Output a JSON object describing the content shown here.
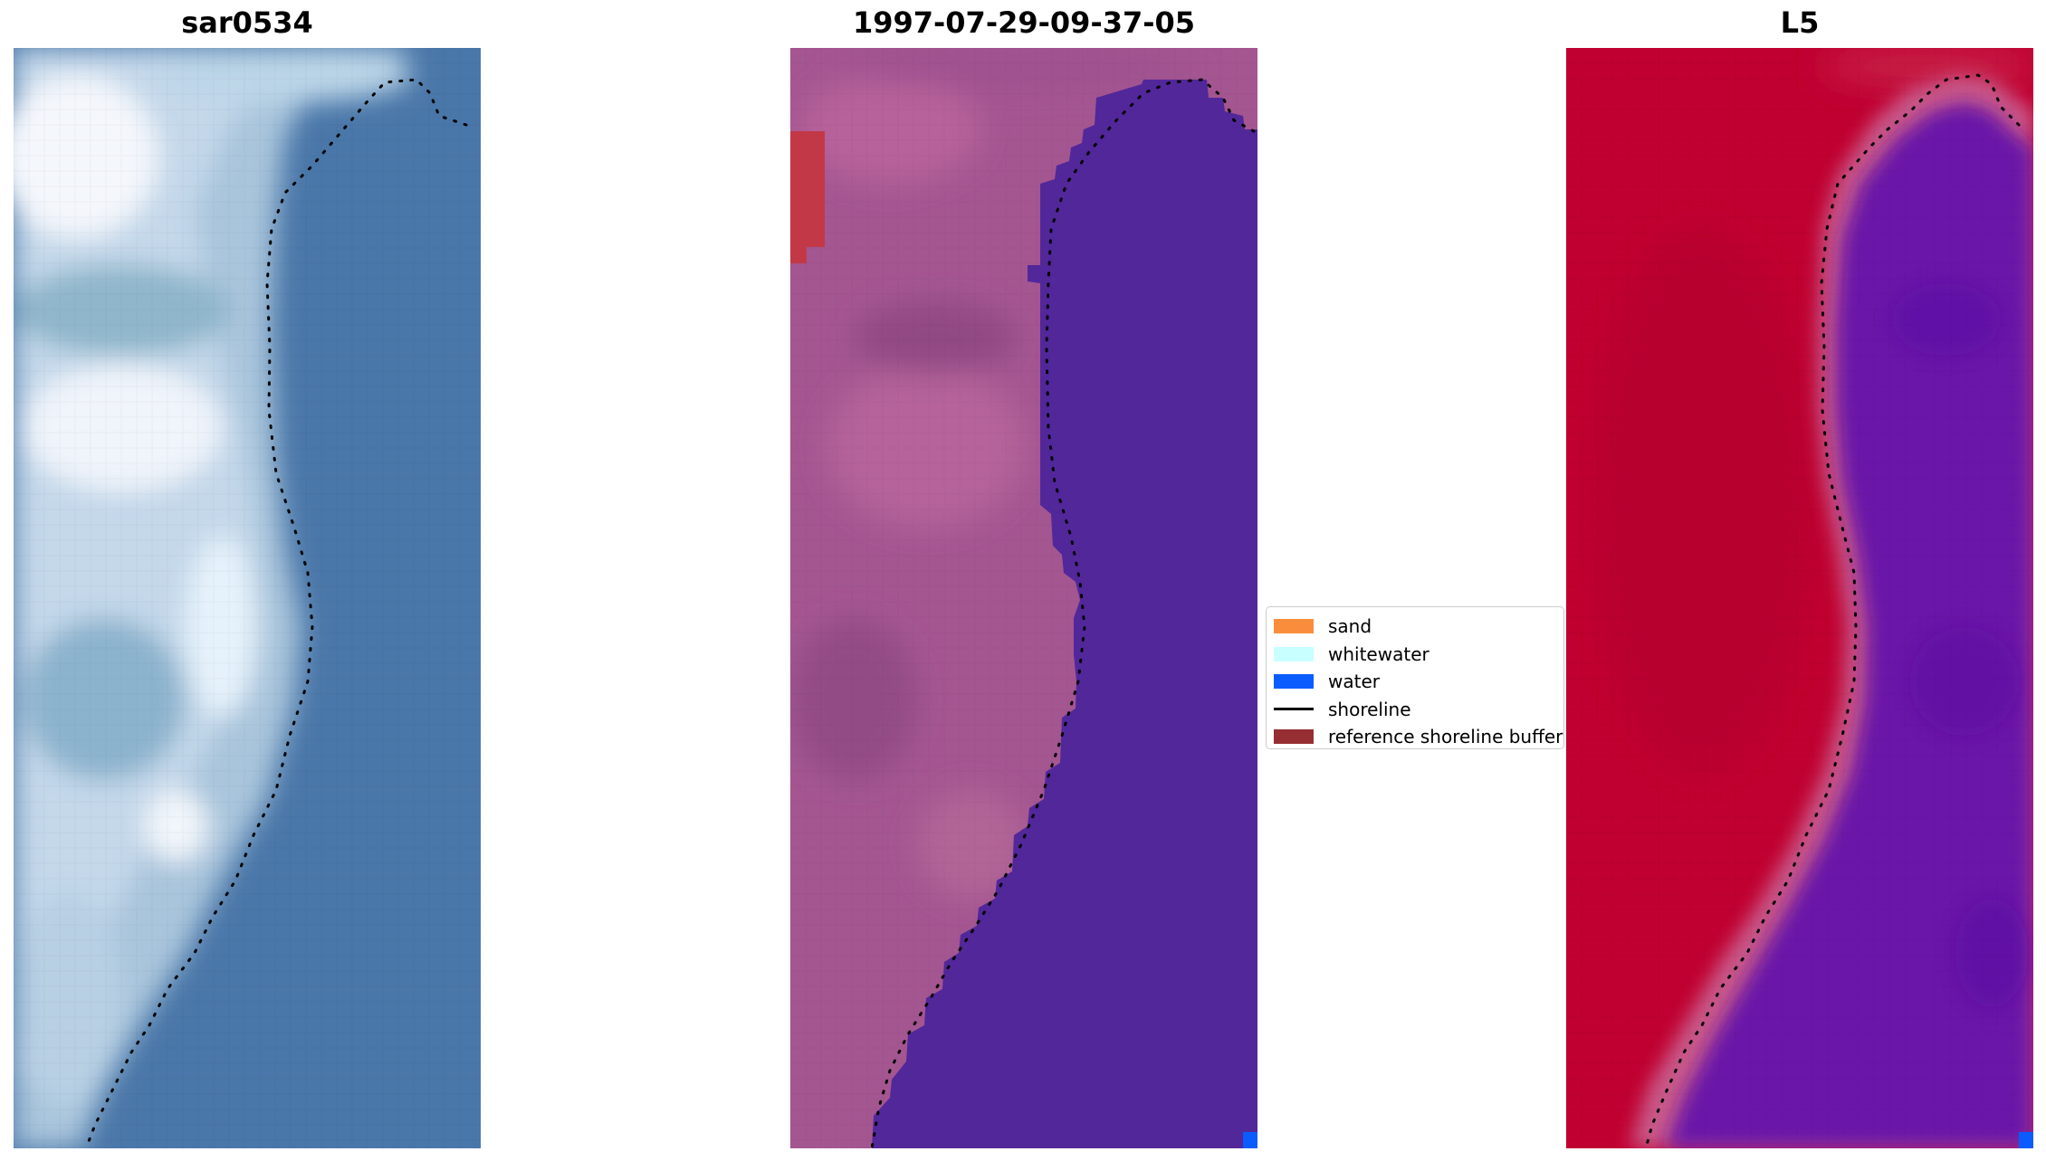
{
  "panels": [
    {
      "title": "sar0534"
    },
    {
      "title": "1997-07-29-09-37-05"
    },
    {
      "title": "L5"
    }
  ],
  "legend": {
    "items": [
      {
        "label": "sand",
        "kind": "patch",
        "color": "#fa8d3c"
      },
      {
        "label": "whitewater",
        "kind": "patch",
        "color": "#c8ffff"
      },
      {
        "label": "water",
        "kind": "patch",
        "color": "#0a5cff"
      },
      {
        "label": "shoreline",
        "kind": "line",
        "color": "#000000"
      },
      {
        "label": "reference shoreline buffer",
        "kind": "patch",
        "color": "#962e34"
      }
    ]
  },
  "colors": {
    "rgb_water": "#4a77a9",
    "rgb_surf": "#eef4fb",
    "classified_land": "#a45691",
    "classified_water": "#52279a",
    "classified_buffer": "#c33847",
    "classified_water_pixel": "#0a5cff",
    "mndwi_land": "#c00030",
    "mndwi_water": "#6a12a8"
  }
}
